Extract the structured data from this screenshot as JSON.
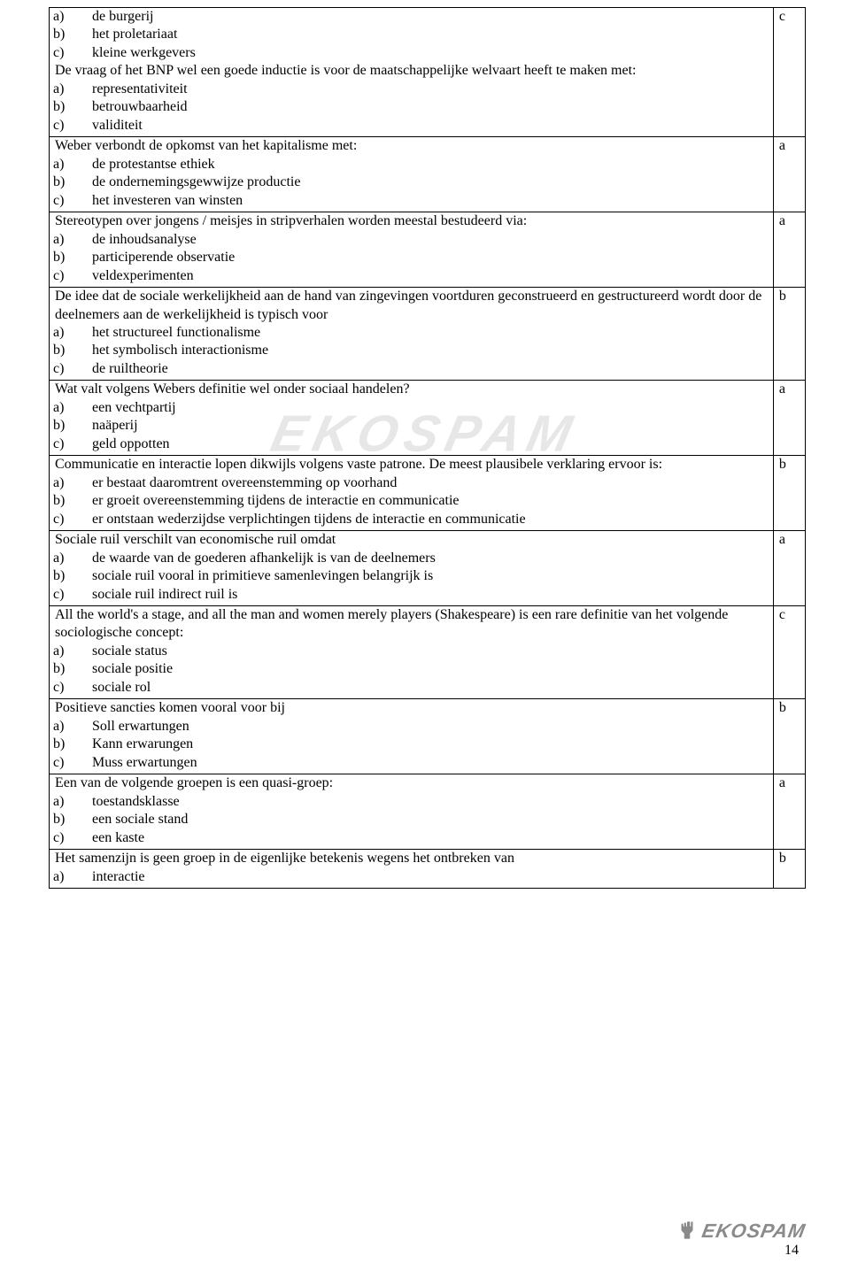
{
  "page_number": "14",
  "watermark_text": "EKOSPAM",
  "footer_logo_text": "EKOSPAM",
  "questions": [
    {
      "pre_options": [
        "de burgerij",
        "het proletariaat",
        "kleine werkgevers"
      ],
      "stem": "De vraag of het BNP wel een goede inductie is voor de maatschappelijke welvaart heeft te maken met:",
      "options": [
        "representativiteit",
        "betrouwbaarheid",
        "validiteit"
      ],
      "answer": "c"
    },
    {
      "stem": "Weber verbondt de opkomst van het kapitalisme met:",
      "options": [
        "de protestantse ethiek",
        "de ondernemingsgewwijze productie",
        "het investeren van winsten"
      ],
      "answer": "a"
    },
    {
      "stem": "Stereotypen over jongens / meisjes in stripverhalen worden meestal bestudeerd via:",
      "options": [
        "de inhoudsanalyse",
        "participerende observatie",
        "veldexperimenten"
      ],
      "answer": "a"
    },
    {
      "stem": "De idee dat de sociale werkelijkheid aan de hand van zingevingen voortduren geconstrueerd en gestructureerd wordt door de deelnemers aan de werkelijkheid is typisch voor",
      "options": [
        "het structureel functionalisme",
        "het symbolisch interactionisme",
        "de ruiltheorie"
      ],
      "answer": "b"
    },
    {
      "stem": "Wat valt volgens Webers definitie wel onder sociaal handelen?",
      "options": [
        "een vechtpartij",
        "naäperij",
        "geld oppotten"
      ],
      "answer": "a"
    },
    {
      "stem": "Communicatie en interactie lopen dikwijls volgens vaste patrone. De meest plausibele verklaring ervoor is:",
      "options": [
        "er bestaat daaromtrent overeenstemming op voorhand",
        "er groeit overeenstemming tijdens de interactie en communicatie",
        "er ontstaan wederzijdse verplichtingen tijdens de interactie en communicatie"
      ],
      "answer": "b"
    },
    {
      "stem": "Sociale ruil verschilt van economische ruil omdat",
      "options": [
        "de waarde van de goederen afhankelijk is van de deelnemers",
        "sociale ruil vooral in primitieve samenlevingen belangrijk is",
        "sociale ruil indirect ruil is"
      ],
      "answer": "a"
    },
    {
      "stem": "All the world's a stage, and all the man and women merely players (Shakespeare) is een rare definitie van het volgende sociologische concept:",
      "options": [
        "sociale status",
        "sociale positie",
        "sociale rol"
      ],
      "answer": "c"
    },
    {
      "stem": "Positieve sancties komen vooral voor bij",
      "options": [
        "Soll erwartungen",
        "Kann erwarungen",
        "Muss erwartungen"
      ],
      "answer": "b"
    },
    {
      "stem": "Een van de volgende groepen is een quasi-groep:",
      "options": [
        "toestandsklasse",
        "een sociale stand",
        "een kaste"
      ],
      "answer": "a"
    },
    {
      "stem": "Het samenzijn is geen groep in de eigenlijke betekenis wegens het ontbreken van",
      "options_partial": [
        "interactie"
      ],
      "answer": "b"
    }
  ],
  "option_labels": [
    "a)",
    "b)",
    "c)"
  ]
}
